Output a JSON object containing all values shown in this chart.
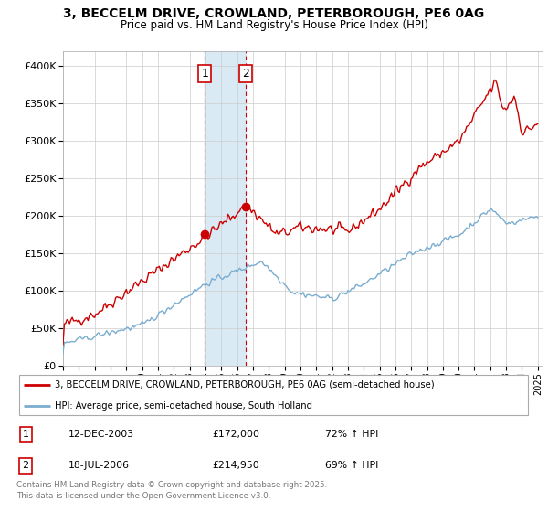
{
  "title": "3, BECCELM DRIVE, CROWLAND, PETERBOROUGH, PE6 0AG",
  "subtitle": "Price paid vs. HM Land Registry's House Price Index (HPI)",
  "sale1_x": 2003.958,
  "sale1_price": 172000,
  "sale1_label": "1",
  "sale2_x": 2006.542,
  "sale2_price": 214950,
  "sale2_label": "2",
  "legend_line1": "3, BECCELM DRIVE, CROWLAND, PETERBOROUGH, PE6 0AG (semi-detached house)",
  "legend_line2": "HPI: Average price, semi-detached house, South Holland",
  "table_row1": [
    "1",
    "12-DEC-2003",
    "£172,000",
    "72% ↑ HPI"
  ],
  "table_row2": [
    "2",
    "18-JUL-2006",
    "£214,950",
    "69% ↑ HPI"
  ],
  "footnote": "Contains HM Land Registry data © Crown copyright and database right 2025.\nThis data is licensed under the Open Government Licence v3.0.",
  "red_color": "#cc0000",
  "blue_color": "#7aadcf",
  "shading_color": "#daeaf5",
  "background_color": "#ffffff",
  "grid_color": "#cccccc",
  "ylim": [
    0,
    420000
  ],
  "xlim": [
    1995,
    2025.3
  ]
}
